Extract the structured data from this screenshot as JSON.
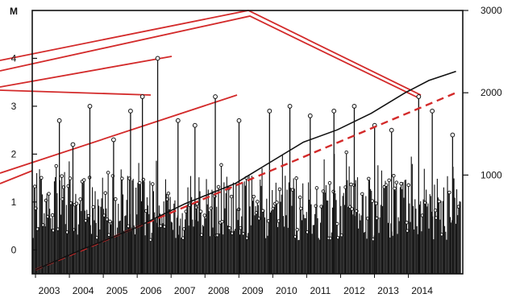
{
  "chart_data": {
    "type": "line",
    "title": "",
    "y_left_label": "M",
    "y_left_ticks": [
      "0",
      "1",
      "2",
      "3",
      "4"
    ],
    "y_left_range": [
      -0.5,
      5.0
    ],
    "y_right_ticks": [
      "1000",
      "2000",
      "3000"
    ],
    "y_right_range": [
      -200,
      3000
    ],
    "x_range": [
      2002.5,
      2015.2
    ],
    "x_tick_labels": [
      "2003",
      "2004",
      "2005",
      "2006",
      "2007",
      "2008",
      "2009",
      "2010",
      "2011",
      "2012",
      "2013",
      "2014"
    ],
    "x_tick_years": [
      2003,
      2004,
      2005,
      2006,
      2007,
      2008,
      2009,
      2010,
      2011,
      2012,
      2013,
      2014
    ],
    "grid": false,
    "legend": "none",
    "colors": {
      "stems": "#111111",
      "cumulative": "#111111",
      "trend": "#d32a2a",
      "connector": "#d32a2a"
    },
    "tall_events": [
      {
        "x": 2003.3,
        "m": 2.7
      },
      {
        "x": 2003.7,
        "m": 2.2
      },
      {
        "x": 2004.2,
        "m": 3.0
      },
      {
        "x": 2004.9,
        "m": 2.3
      },
      {
        "x": 2005.4,
        "m": 2.9
      },
      {
        "x": 2005.75,
        "m": 3.2
      },
      {
        "x": 2006.2,
        "m": 4.0
      },
      {
        "x": 2006.8,
        "m": 2.7
      },
      {
        "x": 2007.3,
        "m": 2.6
      },
      {
        "x": 2007.9,
        "m": 3.2
      },
      {
        "x": 2008.6,
        "m": 2.7
      },
      {
        "x": 2009.5,
        "m": 2.9
      },
      {
        "x": 2010.1,
        "m": 3.0
      },
      {
        "x": 2010.7,
        "m": 2.8
      },
      {
        "x": 2011.4,
        "m": 2.9
      },
      {
        "x": 2012.0,
        "m": 3.0
      },
      {
        "x": 2012.6,
        "m": 2.6
      },
      {
        "x": 2013.1,
        "m": 2.5
      },
      {
        "x": 2013.9,
        "m": 3.2
      },
      {
        "x": 2014.3,
        "m": 2.9
      },
      {
        "x": 2014.9,
        "m": 2.4
      }
    ],
    "cumulative_points": [
      {
        "x": 2002.6,
        "y": -150
      },
      {
        "x": 2004.0,
        "y": 100
      },
      {
        "x": 2005.5,
        "y": 350
      },
      {
        "x": 2007.0,
        "y": 650
      },
      {
        "x": 2008.5,
        "y": 900
      },
      {
        "x": 2009.5,
        "y": 1150
      },
      {
        "x": 2010.5,
        "y": 1400
      },
      {
        "x": 2011.5,
        "y": 1550
      },
      {
        "x": 2012.5,
        "y": 1750
      },
      {
        "x": 2013.5,
        "y": 2000
      },
      {
        "x": 2014.2,
        "y": 2150
      },
      {
        "x": 2015.0,
        "y": 2260
      }
    ],
    "trend_line": [
      {
        "x": 2002.6,
        "y": -150
      },
      {
        "x": 2015.0,
        "y": 2000
      }
    ]
  }
}
